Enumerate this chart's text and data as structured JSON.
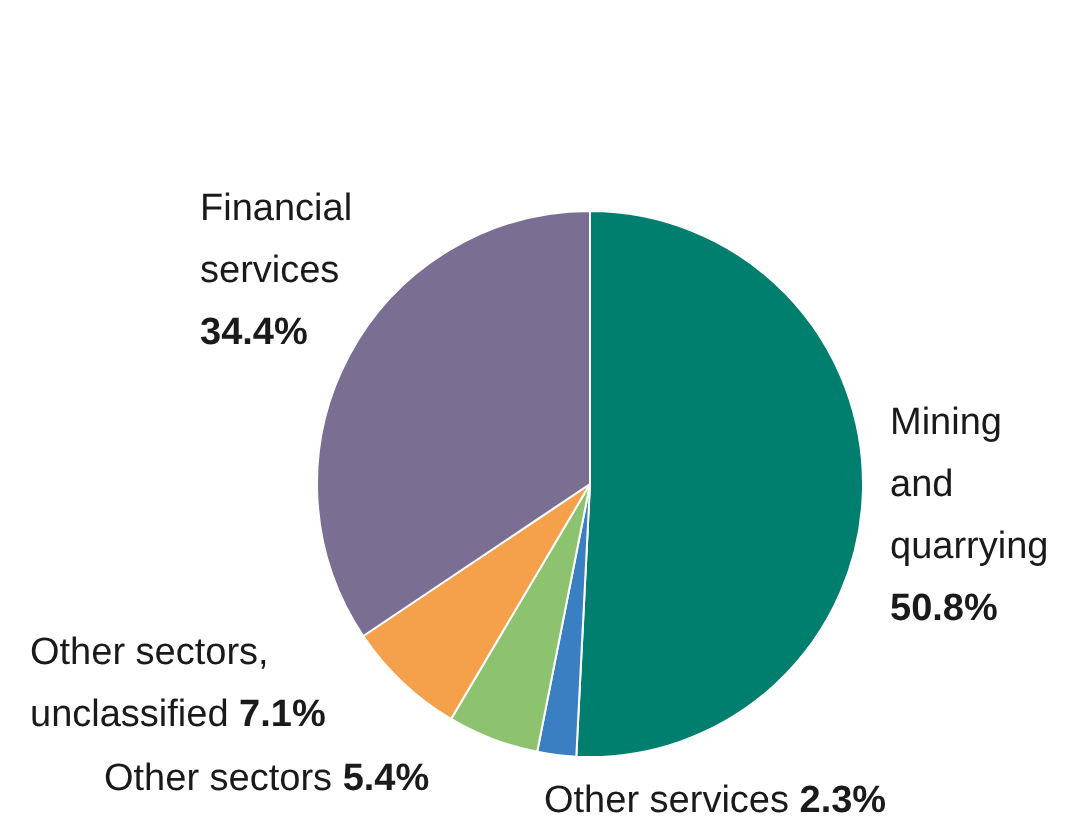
{
  "chart_data": {
    "type": "pie",
    "categories": [
      "Mining and quarrying",
      "Other services",
      "Other sectors",
      "Other sectors, unclassified",
      "Financial services"
    ],
    "values": [
      50.8,
      2.3,
      5.4,
      7.1,
      34.4
    ],
    "value_labels": [
      "50.8%",
      "2.3%",
      "5.4%",
      "7.1%",
      "34.4%"
    ],
    "colors": [
      "#007f6e",
      "#3a7fc1",
      "#8dc26f",
      "#f5a04a",
      "#7a6e92"
    ],
    "legend": false
  }
}
